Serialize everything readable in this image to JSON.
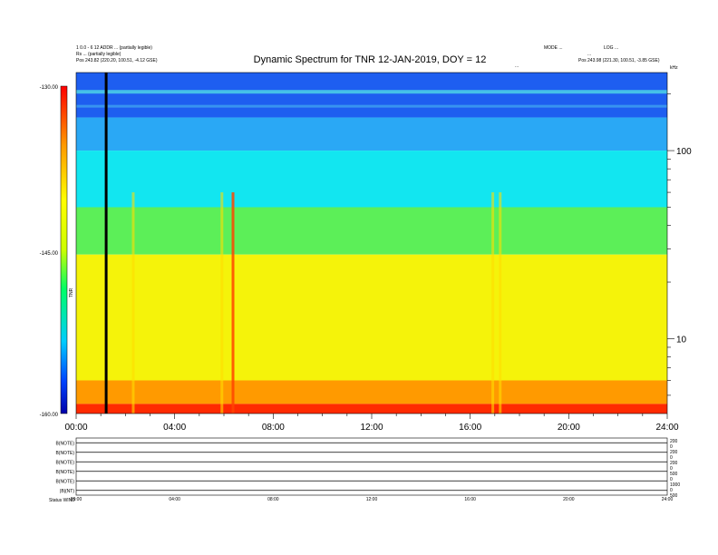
{
  "chart_data": {
    "type": "heatmap",
    "title": "Dynamic Spectrum for TNR 12-JAN-2019, DOY = 12",
    "header_left": [
      "1 0.0 - 6 12 ADDR ... (partially legible)",
      "Rs  ...  (partially legible)",
      "Pos    243.82 (220.20, 100.51, -4.12 GSE)"
    ],
    "header_right": [
      "MODE ...",
      "LOG ...",
      "...",
      "Pos    243.98 (221.30, 100.51, -3.85 GSE)"
    ],
    "mid_label": "...",
    "x_axis": {
      "range_hours": [
        0,
        24
      ],
      "ticks": [
        {
          "hour": 0,
          "label": "00:00"
        },
        {
          "hour": 4,
          "label": "04:00"
        },
        {
          "hour": 8,
          "label": "08:00"
        },
        {
          "hour": 12,
          "label": "12:00"
        },
        {
          "hour": 16,
          "label": "16:00"
        },
        {
          "hour": 20,
          "label": "20:00"
        },
        {
          "hour": 24,
          "label": "24:00"
        }
      ]
    },
    "y_axis": {
      "scale": "log",
      "unit": "kHz",
      "range": [
        4,
        260
      ],
      "tick_labels": [
        {
          "value": 100,
          "label": "100"
        },
        {
          "value": 10,
          "label": "10"
        }
      ],
      "corner_label": "kHz"
    },
    "colorbar": {
      "range": [
        -160,
        -130
      ],
      "tick_labels": [
        {
          "value": -130,
          "label": "-130.00"
        },
        {
          "value": -145,
          "label": "-145.00"
        },
        {
          "value": -160,
          "label": "-160.00"
        }
      ],
      "side_label": "TNR",
      "colors": [
        "#0000aa",
        "#0044ff",
        "#00ccff",
        "#00ff66",
        "#ccff00",
        "#ffff00",
        "#ff9900",
        "#ff0000"
      ]
    },
    "spectrum_bands": [
      {
        "freq_range_kHz": [
          150,
          260
        ],
        "level_dB": -137,
        "color": "#1e5ef0"
      },
      {
        "freq_range_kHz": [
          100,
          150
        ],
        "level_dB": -139,
        "color": "#2aa8f5"
      },
      {
        "freq_range_kHz": [
          50,
          100
        ],
        "level_dB": -141,
        "color": "#12e6f0"
      },
      {
        "freq_range_kHz": [
          28,
          50
        ],
        "level_dB": -145,
        "color": "#5cef58"
      },
      {
        "freq_range_kHz": [
          6,
          28
        ],
        "level_dB": -149,
        "color": "#f5f30a"
      },
      {
        "freq_range_kHz": [
          4.5,
          6
        ],
        "level_dB": -153,
        "color": "#ff9a00"
      },
      {
        "freq_range_kHz": [
          4,
          4.5
        ],
        "level_dB": -158,
        "color": "#ff2a00"
      }
    ],
    "bursts_hours": [
      6.35,
      17.2,
      16.9,
      5.9,
      2.3
    ],
    "data_gap_hour": 1.2,
    "bottom_panels": {
      "labels": [
        "B(NOTE)",
        "B(NOTE)",
        "B(NOTE)",
        "B(NOTE)",
        "B(NOTE)",
        "|B|(NT)"
      ],
      "right_labels": [
        "200",
        "0",
        "200",
        "0",
        "200",
        "0",
        "500",
        "0",
        "1000",
        "0",
        "500"
      ],
      "x_ticks": [
        "00:00",
        "04:00",
        "08:00",
        "12:00",
        "16:00",
        "20:00",
        "24:00"
      ],
      "footer_left": "Status  WIND"
    }
  }
}
